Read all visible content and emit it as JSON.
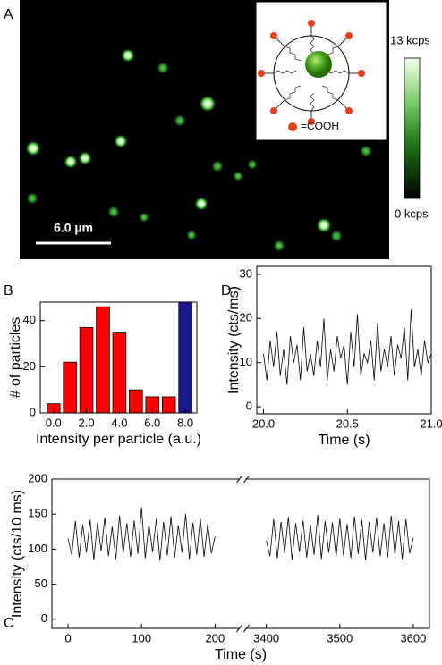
{
  "panel_a": {
    "label": "A",
    "scale_bar": "6.0 µm",
    "colorbar_max": "13 kcps",
    "colorbar_min": "0 kcps",
    "inset_legend": "=COOH"
  },
  "chart_data": [
    {
      "type": "histogram",
      "panel_label": "B",
      "x_label": "Intensity per particle (a.u.)",
      "y_label": "# of particles",
      "bins": [
        -0.5,
        0.5,
        1.5,
        2.5,
        3.5,
        4.5,
        5.5,
        6.5,
        7.5,
        8.5
      ],
      "values": [
        4,
        22,
        37,
        46,
        35,
        10,
        7,
        7,
        48
      ],
      "colors": [
        "#ff0000",
        "#ff0000",
        "#ff0000",
        "#ff0000",
        "#ff0000",
        "#ff0000",
        "#ff0000",
        "#ff0000",
        "#1a1a8c"
      ],
      "xlim": [
        -0.8,
        8.7
      ],
      "ylim": [
        0,
        48
      ],
      "xticks": [
        {
          "value": 0,
          "label": "0.0"
        },
        {
          "value": 2,
          "label": "2.0"
        },
        {
          "value": 4,
          "label": "4.0"
        },
        {
          "value": 6,
          "label": "6.0"
        },
        {
          "value": 8,
          "label": "8.0"
        }
      ],
      "yticks": [
        0,
        20,
        40
      ]
    },
    {
      "type": "line",
      "panel_label": "D",
      "x_label": "Time (s)",
      "y_label": "Intensity (cts/ms)",
      "x": [
        20.0,
        20.02,
        20.04,
        20.06,
        20.08,
        20.1,
        20.12,
        20.14,
        20.16,
        20.18,
        20.2,
        20.22,
        20.24,
        20.26,
        20.28,
        20.3,
        20.32,
        20.34,
        20.36,
        20.38,
        20.4,
        20.42,
        20.44,
        20.46,
        20.48,
        20.5,
        20.52,
        20.54,
        20.56,
        20.58,
        20.6,
        20.62,
        20.64,
        20.66,
        20.68,
        20.7,
        20.72,
        20.74,
        20.76,
        20.78,
        20.8,
        20.82,
        20.84,
        20.86,
        20.88,
        20.9,
        20.92,
        20.94,
        20.96,
        20.98,
        21.0
      ],
      "series": [
        {
          "color": "#000000",
          "values": [
            12,
            6,
            15,
            9,
            17,
            7,
            13,
            5,
            16,
            10,
            14,
            6,
            18,
            8,
            12,
            7,
            15,
            9,
            20,
            6,
            13,
            8,
            16,
            11,
            14,
            5,
            17,
            9,
            21,
            7,
            12,
            10,
            15,
            6,
            19,
            8,
            13,
            9,
            16,
            7,
            14,
            11,
            18,
            6,
            22,
            9,
            13,
            7,
            15,
            10,
            12
          ]
        }
      ],
      "xlim": [
        19.96,
        21.0
      ],
      "ylim": [
        -1.6,
        31.8
      ],
      "xticks": [
        {
          "value": 20,
          "label": "20.0"
        },
        {
          "value": 20.5,
          "label": "20.5"
        },
        {
          "value": 21,
          "label": "21.0"
        }
      ],
      "yticks": [
        0,
        10,
        20,
        30
      ]
    },
    {
      "type": "line",
      "panel_label": "C",
      "x_label": "Time (s)",
      "y_label": "Intensity (cts/10 ms)",
      "series": [
        {
          "color": "#000000",
          "x": [
            0,
            5,
            10,
            15,
            20,
            25,
            30,
            35,
            40,
            45,
            50,
            55,
            60,
            65,
            70,
            75,
            80,
            85,
            90,
            95,
            100,
            105,
            110,
            115,
            120,
            125,
            130,
            135,
            140,
            145,
            150,
            155,
            160,
            165,
            170,
            175,
            180,
            185,
            190,
            195,
            200
          ],
          "values": [
            115,
            92,
            140,
            88,
            135,
            95,
            142,
            85,
            138,
            97,
            145,
            90,
            132,
            86,
            148,
            94,
            137,
            89,
            141,
            93,
            160,
            87,
            136,
            96,
            143,
            84,
            139,
            91,
            147,
            88,
            134,
            95,
            150,
            86,
            138,
            92,
            144,
            89,
            136,
            94,
            118
          ]
        },
        {
          "color": "#000000",
          "x": [
            3400,
            3405,
            3410,
            3415,
            3420,
            3425,
            3430,
            3435,
            3440,
            3445,
            3450,
            3455,
            3460,
            3465,
            3470,
            3475,
            3480,
            3485,
            3490,
            3495,
            3500,
            3505,
            3510,
            3515,
            3520,
            3525,
            3530,
            3535,
            3540,
            3545,
            3550,
            3555,
            3560,
            3565,
            3570,
            3575,
            3580,
            3585,
            3590,
            3595,
            3600
          ],
          "values": [
            112,
            90,
            143,
            87,
            139,
            94,
            146,
            85,
            137,
            96,
            141,
            88,
            135,
            92,
            149,
            86,
            140,
            95,
            138,
            89,
            144,
            91,
            136,
            87,
            147,
            93,
            142,
            84,
            139,
            95,
            145,
            90,
            137,
            88,
            148,
            92,
            140,
            86,
            143,
            94,
            116
          ]
        }
      ],
      "xlim": [
        [
          -22,
          233
        ],
        [
          3373,
          3622
        ]
      ],
      "ylim": [
        -13,
        200
      ],
      "xticks": [
        0,
        100,
        200,
        3400,
        3500,
        3600
      ],
      "yticks": [
        0,
        50,
        100,
        150,
        200
      ]
    }
  ]
}
